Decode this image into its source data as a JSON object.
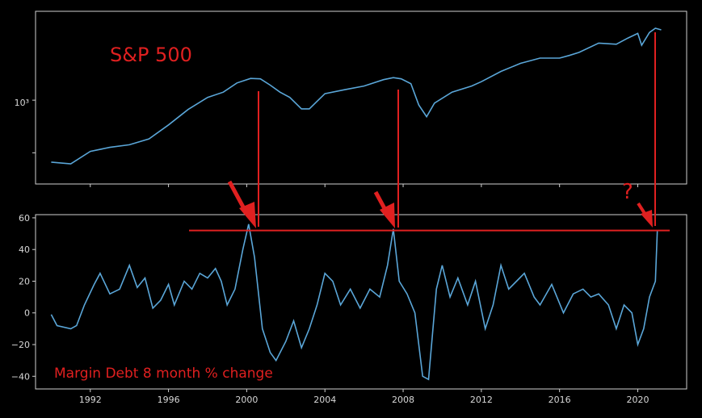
{
  "colors": {
    "background": "#000000",
    "axes_frame": "#cfcfcf",
    "tick_text": "#d8d8d8",
    "series_line": "#5aa6d8",
    "annotation_red": "#e02020"
  },
  "chart_data": [
    {
      "type": "line",
      "title": "S&P 500",
      "yscale": "log",
      "ytick_labels": [
        "10³"
      ],
      "x": [
        1990.0,
        1991.0,
        1992.0,
        1993.0,
        1994.0,
        1995.0,
        1996.0,
        1997.0,
        1998.0,
        1998.8,
        1999.5,
        2000.2,
        2000.7,
        2001.2,
        2001.7,
        2002.2,
        2002.8,
        2003.2,
        2004.0,
        2005.0,
        2006.0,
        2007.0,
        2007.5,
        2007.9,
        2008.4,
        2008.8,
        2009.2,
        2009.6,
        2010.5,
        2011.5,
        2012.0,
        2013.0,
        2014.0,
        2015.0,
        2016.0,
        2016.5,
        2017.0,
        2018.0,
        2018.9,
        2019.5,
        2020.0,
        2020.2,
        2020.6,
        2020.9,
        2021.2
      ],
      "y": [
        340,
        330,
        410,
        440,
        460,
        510,
        650,
        850,
        1050,
        1150,
        1350,
        1460,
        1450,
        1300,
        1150,
        1050,
        860,
        860,
        1120,
        1200,
        1280,
        1430,
        1480,
        1450,
        1330,
        920,
        750,
        950,
        1150,
        1280,
        1380,
        1650,
        1900,
        2080,
        2080,
        2180,
        2300,
        2700,
        2650,
        2950,
        3200,
        2600,
        3250,
        3500,
        3400
      ],
      "xlim": [
        1989.2,
        2022.5
      ]
    },
    {
      "type": "line",
      "title": "Margin Debt 8 month % change",
      "x": [
        1990.0,
        1990.3,
        1991.0,
        1991.3,
        1991.7,
        1992.2,
        1992.5,
        1993.0,
        1993.5,
        1994.0,
        1994.4,
        1994.8,
        1995.2,
        1995.6,
        1996.0,
        1996.3,
        1996.8,
        1997.2,
        1997.6,
        1998.0,
        1998.4,
        1998.7,
        1999.0,
        1999.4,
        1999.8,
        2000.1,
        2000.4,
        2000.8,
        2001.2,
        2001.5,
        2002.0,
        2002.4,
        2002.8,
        2003.2,
        2003.6,
        2004.0,
        2004.4,
        2004.8,
        2005.3,
        2005.8,
        2006.3,
        2006.8,
        2007.2,
        2007.5,
        2007.8,
        2008.2,
        2008.6,
        2009.0,
        2009.3,
        2009.7,
        2010.0,
        2010.4,
        2010.8,
        2011.3,
        2011.7,
        2012.2,
        2012.6,
        2013.0,
        2013.4,
        2013.8,
        2014.2,
        2014.7,
        2015.0,
        2015.6,
        2016.2,
        2016.7,
        2017.2,
        2017.6,
        2018.0,
        2018.5,
        2018.9,
        2019.3,
        2019.7,
        2020.0,
        2020.3,
        2020.6,
        2020.9,
        2021.0
      ],
      "y": [
        -1,
        -8,
        -10,
        -8,
        5,
        18,
        25,
        12,
        15,
        30,
        16,
        22,
        3,
        8,
        18,
        5,
        20,
        15,
        25,
        22,
        28,
        20,
        5,
        15,
        40,
        56,
        35,
        -10,
        -25,
        -30,
        -18,
        -5,
        -22,
        -10,
        5,
        25,
        20,
        5,
        15,
        3,
        15,
        10,
        30,
        53,
        20,
        12,
        0,
        -40,
        -42,
        15,
        30,
        10,
        22,
        5,
        20,
        -10,
        5,
        30,
        15,
        20,
        25,
        10,
        5,
        18,
        0,
        12,
        15,
        10,
        12,
        5,
        -10,
        5,
        0,
        -20,
        -10,
        10,
        20,
        52
      ],
      "xlim": [
        1989.2,
        2022.5
      ],
      "ylim": [
        -48,
        62
      ],
      "xtick_labels": [
        "1992",
        "1996",
        "2000",
        "2004",
        "2008",
        "2012",
        "2016",
        "2020"
      ],
      "ytick_labels": [
        "60",
        "40",
        "20",
        "0",
        "−20",
        "−40"
      ]
    }
  ],
  "annotations": {
    "question_mark": "?",
    "peak_years": [
      2000.2,
      2007.5,
      2020.9
    ],
    "threshold_value": 52
  }
}
